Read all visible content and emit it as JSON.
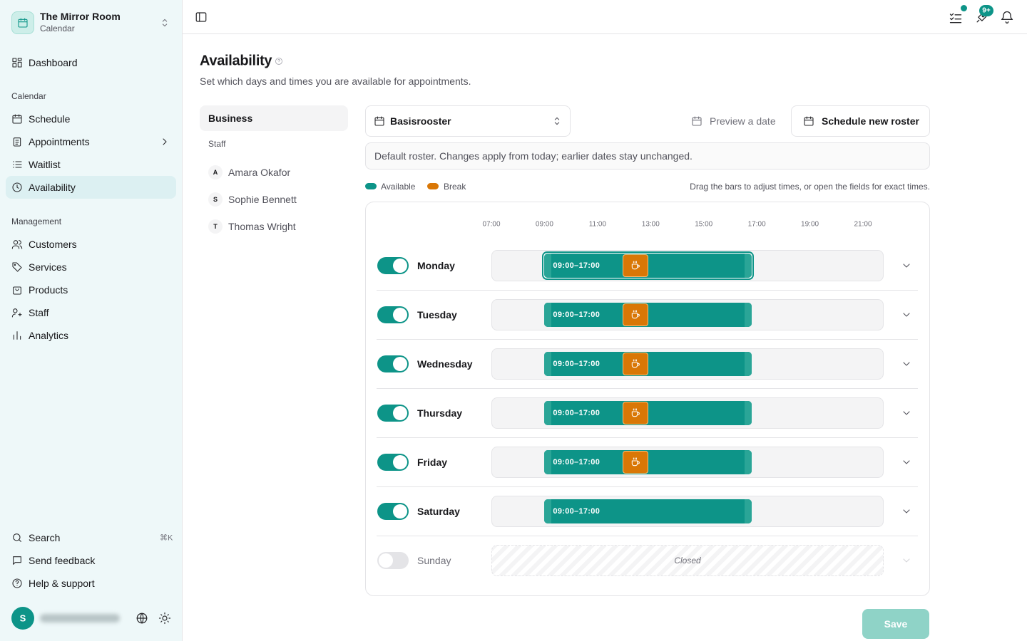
{
  "sidebar": {
    "org_name": "The Mirror Room",
    "org_sub": "Calendar",
    "top_items": [
      "Dashboard"
    ],
    "sections": [
      {
        "label": "Calendar",
        "items": [
          "Schedule",
          "Appointments",
          "Waitlist",
          "Availability"
        ]
      },
      {
        "label": "Management",
        "items": [
          "Customers",
          "Services",
          "Products",
          "Staff"
        ]
      }
    ],
    "extra_items": [
      "Analytics"
    ],
    "footer_items": [
      "Search",
      "Send feedback",
      "Help & support"
    ],
    "search_shortcut": "⌘K",
    "avatar": "S",
    "active": "Availability"
  },
  "topbar": {
    "badge": "9+"
  },
  "page": {
    "title": "Availability",
    "subtitle": "Set which days and times you are available for appointments."
  },
  "tabs": {
    "business": "Business",
    "staff_label": "Staff",
    "staff": [
      {
        "initial": "A",
        "name": "Amara Okafor"
      },
      {
        "initial": "S",
        "name": "Sophie Bennett"
      },
      {
        "initial": "T",
        "name": "Thomas Wright"
      }
    ]
  },
  "roster": {
    "select": "Basisrooster",
    "preview": "Preview a date",
    "new": "Schedule new roster",
    "note": "Default roster. Changes apply from today; earlier dates stay unchanged."
  },
  "legend": {
    "available": "Available",
    "break": "Break",
    "hint": "Drag the bars to adjust times, or open the fields for exact times."
  },
  "hours": [
    "07:00",
    "09:00",
    "11:00",
    "13:00",
    "15:00",
    "17:00",
    "19:00",
    "21:00"
  ],
  "days": [
    {
      "name": "Monday",
      "enabled": true,
      "hours": "09:00–17:00",
      "break": true,
      "focused": true
    },
    {
      "name": "Tuesday",
      "enabled": true,
      "hours": "09:00–17:00",
      "break": true
    },
    {
      "name": "Wednesday",
      "enabled": true,
      "hours": "09:00–17:00",
      "break": true
    },
    {
      "name": "Thursday",
      "enabled": true,
      "hours": "09:00–17:00",
      "break": true
    },
    {
      "name": "Friday",
      "enabled": true,
      "hours": "09:00–17:00",
      "break": true
    },
    {
      "name": "Saturday",
      "enabled": true,
      "hours": "09:00–17:00",
      "break": false
    },
    {
      "name": "Sunday",
      "enabled": false,
      "closed": "Closed"
    }
  ],
  "save": "Save"
}
